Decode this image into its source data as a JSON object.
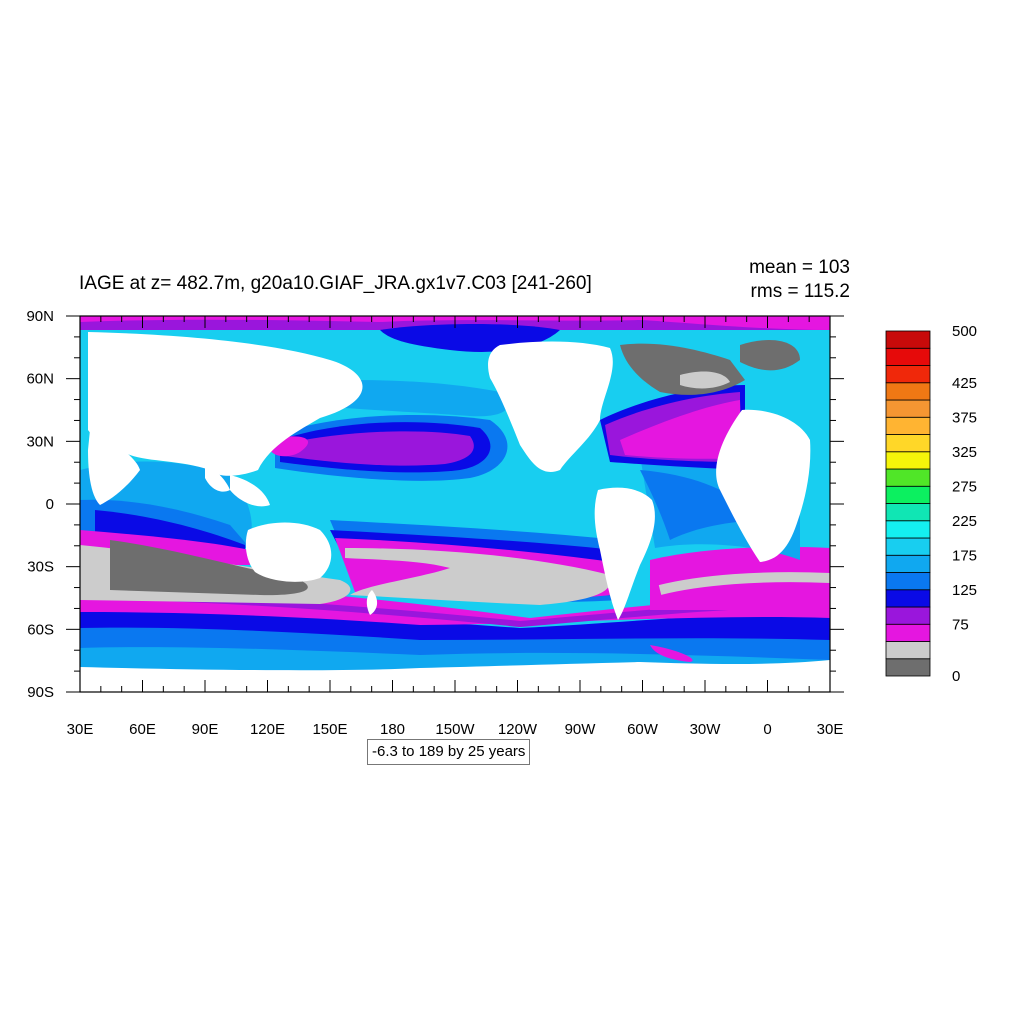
{
  "chart_data": {
    "type": "heatmap",
    "title": "IAGE at z= 482.7m, g20a10.GIAF_JRA.gx1v7.C03 [241-260]",
    "mean_text": "mean = 103",
    "rms_text": "rms = 115.2",
    "contour_info": "-6.3 to 189 by 25 years",
    "xlim": [
      30,
      390
    ],
    "ylim": [
      -90,
      90
    ],
    "x_ticks": [
      {
        "value": 30,
        "label": "30E"
      },
      {
        "value": 60,
        "label": "60E"
      },
      {
        "value": 90,
        "label": "90E"
      },
      {
        "value": 120,
        "label": "120E"
      },
      {
        "value": 150,
        "label": "150E"
      },
      {
        "value": 180,
        "label": "180"
      },
      {
        "value": 210,
        "label": "150W"
      },
      {
        "value": 240,
        "label": "120W"
      },
      {
        "value": 270,
        "label": "90W"
      },
      {
        "value": 300,
        "label": "60W"
      },
      {
        "value": 330,
        "label": "30W"
      },
      {
        "value": 360,
        "label": "0"
      },
      {
        "value": 390,
        "label": "30E"
      }
    ],
    "y_ticks": [
      {
        "value": 90,
        "label": "90N"
      },
      {
        "value": 60,
        "label": "60N"
      },
      {
        "value": 30,
        "label": "30N"
      },
      {
        "value": 0,
        "label": "0"
      },
      {
        "value": -30,
        "label": "30S"
      },
      {
        "value": -60,
        "label": "60S"
      },
      {
        "value": -90,
        "label": "90S"
      }
    ],
    "colorbar": {
      "colors": [
        "#6e6e6e",
        "#cccccc",
        "#e516e0",
        "#9a16dc",
        "#0a0ae6",
        "#0a78f0",
        "#10a8f0",
        "#18cef0",
        "#14f0f0",
        "#10e6b4",
        "#0cf060",
        "#50e628",
        "#f5f50a",
        "#ffd728",
        "#ffb432",
        "#f59632",
        "#f07814",
        "#f0280a",
        "#e60a0a",
        "#c80a0a"
      ],
      "labels": [
        {
          "value": 0,
          "label": "0"
        },
        {
          "value": 75,
          "label": "75"
        },
        {
          "value": 125,
          "label": "125"
        },
        {
          "value": 175,
          "label": "175"
        },
        {
          "value": 225,
          "label": "225"
        },
        {
          "value": 275,
          "label": "275"
        },
        {
          "value": 325,
          "label": "325"
        },
        {
          "value": 375,
          "label": "375"
        },
        {
          "value": 425,
          "label": "425"
        },
        {
          "value": 500,
          "label": "500"
        }
      ],
      "min": 0,
      "max": 500
    }
  }
}
